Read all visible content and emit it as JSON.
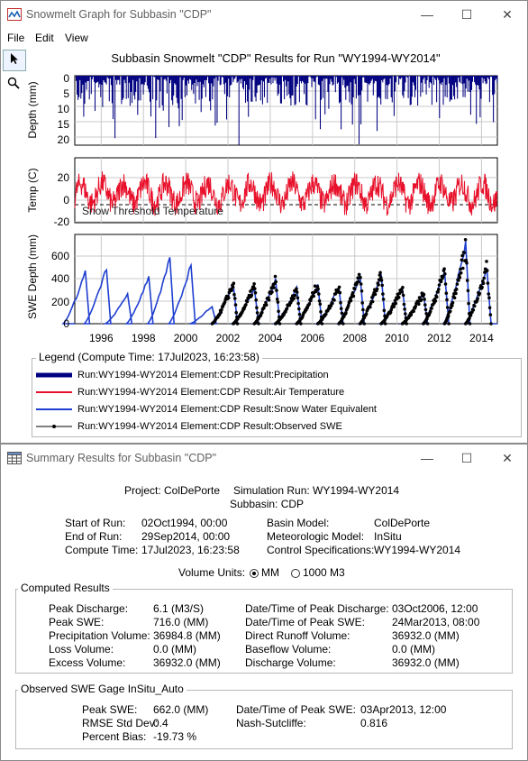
{
  "graph_window": {
    "title": "Snowmelt Graph for Subbasin \"CDP\"",
    "menu": [
      "File",
      "Edit",
      "View"
    ],
    "chart_title": "Subbasin Snowmelt \"CDP\" Results for Run \"WY1994-WY2014\"",
    "panels": {
      "precip": {
        "ylabel": "Depth (mm)",
        "ticks": [
          "0",
          "5",
          "10",
          "15",
          "20"
        ]
      },
      "temp": {
        "ylabel": "Temp (C)",
        "ticks": [
          "20",
          "0",
          "-20"
        ],
        "annotation": "Snow Threshold Temperature"
      },
      "swe": {
        "ylabel": "SWE Depth (mm)",
        "ticks": [
          "600",
          "400",
          "200",
          "0"
        ]
      }
    },
    "x_ticks": [
      "1996",
      "1998",
      "2000",
      "2002",
      "2004",
      "2006",
      "2008",
      "2010",
      "2012",
      "2014"
    ],
    "legend": {
      "title": "Legend (Compute Time: 17Jul2023, 16:23:58)",
      "items": [
        {
          "label": "Run:WY1994-WY2014 Element:CDP Result:Precipitation",
          "color": "#000080"
        },
        {
          "label": "Run:WY1994-WY2014 Element:CDP Result:Air Temperature",
          "color": "#e8102a"
        },
        {
          "label": "Run:WY1994-WY2014 Element:CDP Result:Snow Water Equivalent",
          "color": "#1f3fd0"
        },
        {
          "label": "Run:WY1994-WY2014 Element:CDP Result:Observed SWE",
          "color": "#000000"
        }
      ]
    }
  },
  "chart_data": [
    {
      "type": "bar",
      "title": "Subbasin Snowmelt \"CDP\" Results for Run \"WY1994-WY2014\"",
      "ylabel": "Depth (mm)",
      "ylim": [
        0,
        23
      ],
      "y_inverted": true,
      "series": [
        {
          "name": "Precipitation"
        }
      ]
    },
    {
      "type": "line",
      "ylabel": "Temp (C)",
      "ylim": [
        -30,
        35
      ],
      "series": [
        {
          "name": "Air Temperature"
        }
      ],
      "annotations": [
        "Snow Threshold Temperature"
      ]
    },
    {
      "type": "line",
      "ylabel": "SWE Depth (mm)",
      "ylim": [
        0,
        760
      ],
      "x_ticks": [
        "1996",
        "1998",
        "2000",
        "2002",
        "2004",
        "2006",
        "2008",
        "2010",
        "2012",
        "2014"
      ],
      "series": [
        {
          "name": "Snow Water Equivalent",
          "peak_years": [
            1995,
            1996,
            1997,
            1998,
            1999,
            2000,
            2001,
            2002,
            2003,
            2004,
            2005,
            2006,
            2007,
            2008,
            2009,
            2010,
            2011,
            2012,
            2013,
            2014
          ],
          "peaks": [
            470,
            500,
            270,
            430,
            580,
            530,
            160,
            350,
            330,
            390,
            320,
            350,
            330,
            440,
            430,
            330,
            280,
            480,
            716,
            490
          ]
        },
        {
          "name": "Observed SWE",
          "peak_years": [
            2002,
            2003,
            2004,
            2005,
            2006,
            2007,
            2008,
            2009,
            2010,
            2011,
            2012,
            2013,
            2014
          ],
          "peaks": [
            350,
            330,
            380,
            300,
            350,
            320,
            440,
            430,
            320,
            270,
            470,
            662,
            490
          ]
        }
      ]
    }
  ],
  "summary_window": {
    "title": "Summary Results for Subbasin \"CDP\"",
    "project": "Project: ColDePorte",
    "simulation_run": "Simulation Run: WY1994-WY2014",
    "subbasin": "Subbasin: CDP",
    "info": {
      "start_label": "Start of Run:",
      "start_value": "02Oct1994, 00:00",
      "end_label": "End of Run:",
      "end_value": "29Sep2014, 00:00",
      "compute_label": "Compute Time:",
      "compute_value": "17Jul2023, 16:23:58",
      "basin_label": "Basin Model:",
      "basin_value": "ColDePorte",
      "met_label": "Meteorologic Model:",
      "met_value": "InSitu",
      "control_label": "Control Specifications:",
      "control_value": "WY1994-WY2014"
    },
    "volume_units": {
      "label": "Volume Units:",
      "opt1": "MM",
      "opt2": "1000 M3",
      "selected": "MM"
    },
    "computed": {
      "title": "Computed Results",
      "left": [
        {
          "label": "Peak Discharge:",
          "value": "6.1 (M3/S)"
        },
        {
          "label": "Peak SWE:",
          "value": "716.0 (MM)"
        },
        {
          "label": "Precipitation Volume:",
          "value": "36984.8 (MM)"
        },
        {
          "label": "Loss Volume:",
          "value": "0.0 (MM)"
        },
        {
          "label": "Excess Volume:",
          "value": "36932.0 (MM)"
        }
      ],
      "right": [
        {
          "label": "Date/Time of Peak Discharge:",
          "value": "03Oct2006, 12:00"
        },
        {
          "label": "Date/Time of Peak SWE:",
          "value": "24Mar2013, 08:00"
        },
        {
          "label": "Direct Runoff Volume:",
          "value": "36932.0 (MM)"
        },
        {
          "label": "Baseflow Volume:",
          "value": "0.0 (MM)"
        },
        {
          "label": "Discharge Volume:",
          "value": "36932.0 (MM)"
        }
      ]
    },
    "observed": {
      "title": "Observed SWE Gage InSitu_Auto",
      "peak_swe_label": "Peak SWE:",
      "peak_swe_value": "662.0 (MM)",
      "rmse_label": "RMSE Std Dev:",
      "rmse_value": "0.4",
      "bias_label": "Percent Bias:",
      "bias_value": "-19.73 %",
      "peak_time_label": "Date/Time of Peak SWE:",
      "peak_time_value": "03Apr2013, 12:00",
      "nash_label": "Nash-Sutcliffe:",
      "nash_value": "0.816"
    }
  }
}
